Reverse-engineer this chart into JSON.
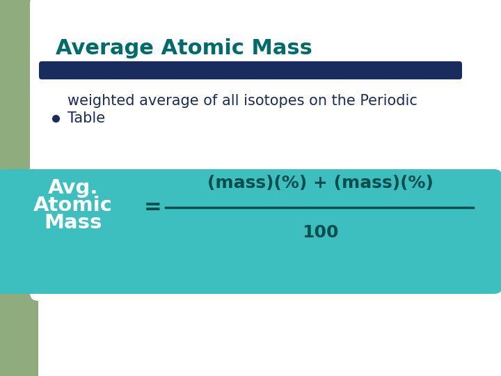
{
  "bg_color": "#ffffff",
  "green_color": "#8fac7e",
  "title_text": "Average Atomic Mass",
  "title_color": "#006b6b",
  "divider_color": "#1a2b5e",
  "bullet_color": "#1a2b5e",
  "bullet_text_line1": "weighted average of all isotopes on the Periodic",
  "bullet_text_line2": "Table",
  "bullet_text_color": "#1a2b5e",
  "formula_box_color": "#3dbfbf",
  "formula_label_color": "#ffffff",
  "formula_text_color": "#004d4d",
  "formula_numerator": "(mass)(%) + (mass)(%)",
  "formula_denominator": "100"
}
